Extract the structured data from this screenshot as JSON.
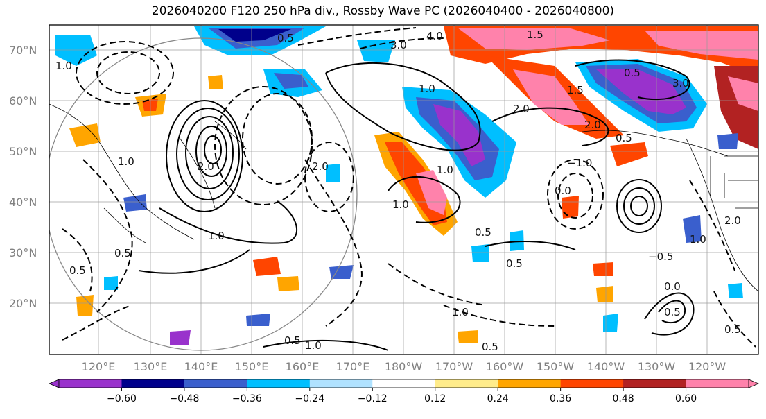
{
  "title": "2026040200 F120 250 hPa div., Rossby Wave PC (2026040400 - 2026040800)",
  "lat_labels": [
    "70°N",
    "60°N",
    "50°N",
    "40°N",
    "30°N",
    "20°N"
  ],
  "lon_labels": [
    "120°E",
    "130°E",
    "140°E",
    "150°E",
    "160°E",
    "170°E",
    "180°W",
    "170°W",
    "160°W",
    "150°W",
    "140°W",
    "130°W",
    "120°W"
  ],
  "colorbar": {
    "colors": [
      "#9932CC",
      "#00008B",
      "#3A5FCD",
      "#00BFFF",
      "#B0E2FF",
      "#FFFFFF",
      "#FFEC8B",
      "#FFA500",
      "#FF4500",
      "#B22222",
      "#FF82AB"
    ],
    "tick_labels": [
      "−0.60",
      "−0.48",
      "−0.36",
      "−0.24",
      "−0.12",
      "0.12",
      "0.24",
      "0.36",
      "0.48",
      "0.60"
    ]
  },
  "contour_labels": [
    "4.0",
    "3.0",
    "2.0",
    "1.0",
    "1.0",
    "1.0",
    "1.0",
    "1.0",
    "1.0",
    "0.5",
    "0.5",
    "0.5",
    "0.5",
    "0.5",
    "0.5",
    "0.5",
    "0.5",
    "0.5",
    "−0.5",
    "−1.0",
    "1.0",
    "2.0",
    "3.0",
    "2.0",
    "2.0",
    "1.5",
    "1.5",
    "2.0",
    "0.0",
    "0.0",
    "0.5",
    "0.5",
    "1.0",
    "1.0"
  ]
}
